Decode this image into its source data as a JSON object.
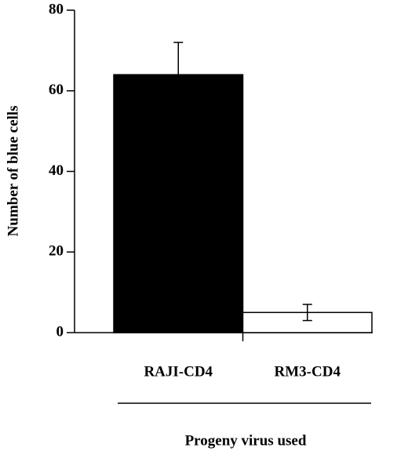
{
  "chart_data": {
    "type": "bar",
    "categories": [
      "RAJI-CD4",
      "RM3-CD4"
    ],
    "values": [
      64,
      5
    ],
    "errors": [
      8,
      2
    ],
    "colors": [
      "#000000",
      "#ffffff"
    ],
    "xlabel": "Progeny virus used",
    "ylabel": "Number of blue cells",
    "ylim": [
      0,
      80
    ],
    "yticks": [
      0,
      20,
      40,
      60,
      80
    ]
  }
}
